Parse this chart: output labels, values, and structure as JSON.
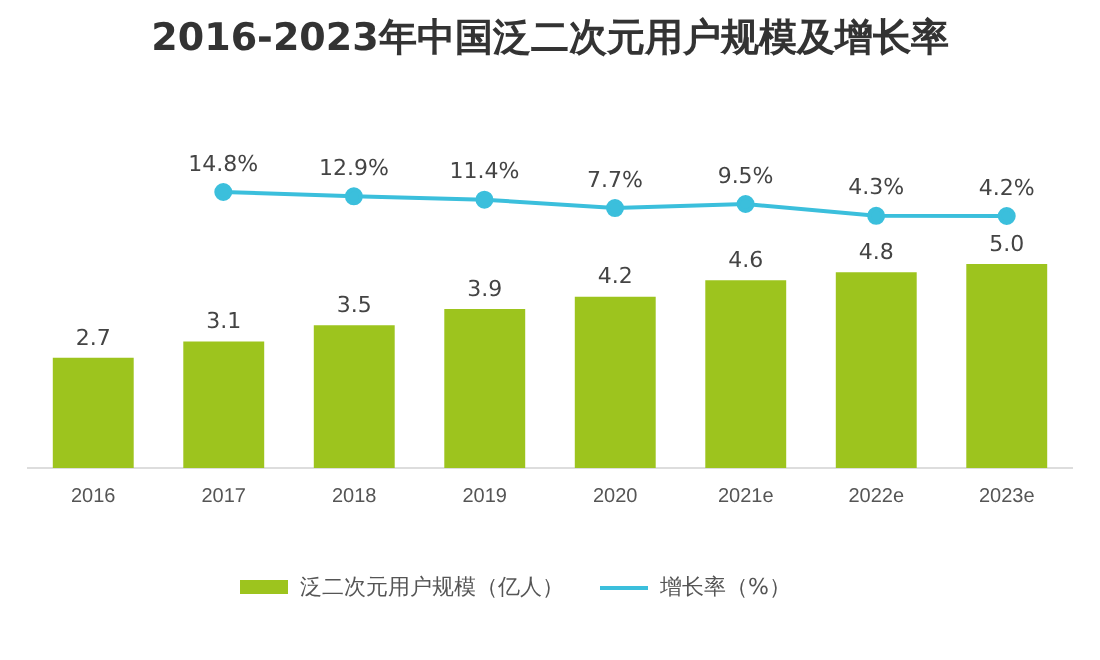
{
  "chart_data": [
    {
      "type": "line",
      "title": "2016-2023年中国泛二次元用户规模及增长率",
      "categories": [
        null,
        null,
        null,
        null,
        null,
        null,
        null
      ],
      "series": [
        {
          "name": "增长率（%）",
          "color": "#3bbfdc",
          "values": [
            14.8,
            12.9,
            11.4,
            7.7,
            9.5,
            4.3,
            4.2
          ],
          "value_labels": [
            "14.8%",
            "12.9%",
            "11.4%",
            "7.7%",
            "9.5%",
            "4.3%",
            "4.2%"
          ]
        }
      ],
      "tick_labels": false,
      "grid": false,
      "legend": "bottom",
      "marker": "circle",
      "line_style": "solid"
    },
    {
      "type": "bar",
      "categories": [
        "2016",
        "2017",
        "2018",
        "2019",
        "2020",
        "2021e",
        "2022e",
        "2023e"
      ],
      "series": [
        {
          "name": "泛二次元用户规模（亿人）",
          "color": "#9dc41e",
          "values": [
            2.7,
            3.1,
            3.5,
            3.9,
            4.2,
            4.6,
            4.8,
            5.0
          ],
          "value_labels": [
            "2.7",
            "3.1",
            "3.5",
            "3.9",
            "4.2",
            "4.6",
            "4.8",
            "5.0"
          ]
        }
      ],
      "tick_labels": "x",
      "grid": false,
      "legend": "bottom"
    }
  ]
}
